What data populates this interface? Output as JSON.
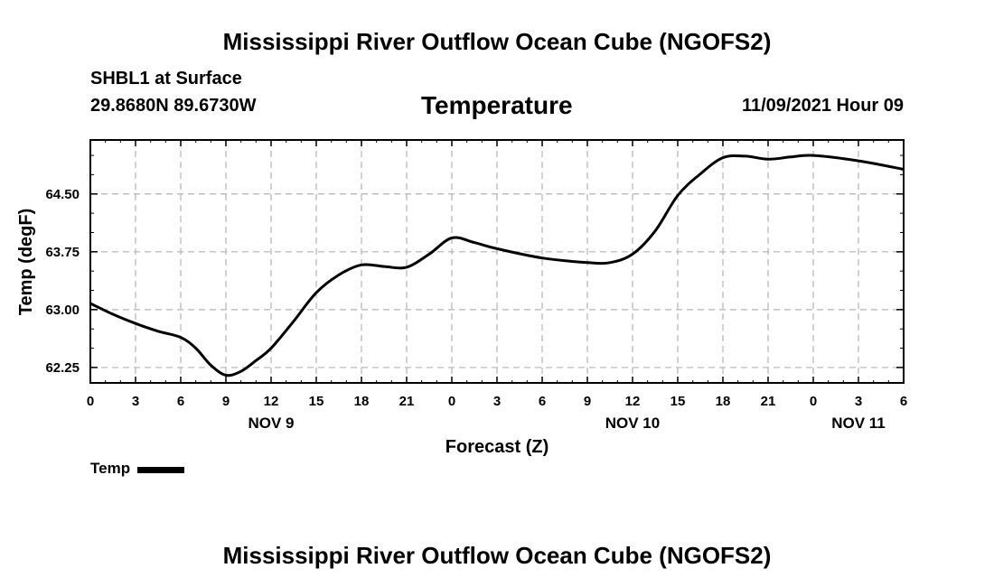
{
  "header": {
    "main_title": "Mississippi River Outflow Ocean Cube (NGOFS2)",
    "station": "SHBL1 at Surface",
    "coords": "29.8680N  89.6730W",
    "variable": "Temperature",
    "datetime": "11/09/2021 Hour 09"
  },
  "footer": {
    "title": "Mississippi River Outflow Ocean Cube (NGOFS2)"
  },
  "legend": {
    "label": "Temp"
  },
  "chart_data": {
    "type": "line",
    "title": "Temperature",
    "xlabel": "Forecast (Z)",
    "ylabel": "Temp (degF)",
    "xlim": [
      0,
      54
    ],
    "ylim": [
      62.05,
      65.2
    ],
    "grid": true,
    "x_ticks": [
      0,
      3,
      6,
      9,
      12,
      15,
      18,
      21,
      24,
      27,
      30,
      33,
      36,
      39,
      42,
      45,
      48,
      51,
      54
    ],
    "x_tick_labels": [
      "0",
      "3",
      "6",
      "9",
      "12",
      "15",
      "18",
      "21",
      "0",
      "3",
      "6",
      "9",
      "12",
      "15",
      "18",
      "21",
      "0",
      "3",
      "6"
    ],
    "date_labels": [
      {
        "x": 12,
        "label": "NOV 9"
      },
      {
        "x": 36,
        "label": "NOV 10"
      },
      {
        "x": 51,
        "label": "NOV 11"
      }
    ],
    "y_ticks": [
      62.25,
      63.0,
      63.75,
      64.5
    ],
    "y_tick_labels": [
      "62.25",
      "63.00",
      "63.75",
      "64.50"
    ],
    "series": [
      {
        "name": "Temp",
        "color": "#000000",
        "x": [
          0,
          1.5,
          3,
          4.5,
          6,
          7,
          8,
          9,
          10,
          11,
          12,
          13.5,
          15,
          16.5,
          18,
          19.5,
          21,
          22.5,
          24,
          25.5,
          27,
          30,
          33,
          34.5,
          36,
          37.5,
          39,
          40.5,
          42,
          43.5,
          45,
          46.5,
          48,
          51,
          54
        ],
        "y": [
          63.08,
          62.94,
          62.82,
          62.72,
          62.64,
          62.5,
          62.28,
          62.15,
          62.2,
          62.34,
          62.5,
          62.85,
          63.22,
          63.45,
          63.58,
          63.56,
          63.55,
          63.72,
          63.93,
          63.87,
          63.79,
          63.67,
          63.61,
          63.61,
          63.72,
          64.02,
          64.48,
          64.76,
          64.97,
          64.99,
          64.95,
          64.98,
          65.0,
          64.93,
          64.82
        ]
      }
    ]
  }
}
